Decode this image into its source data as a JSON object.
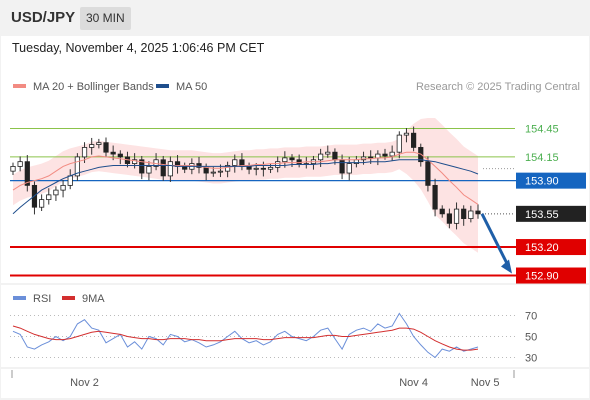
{
  "header": {
    "symbol": "USD/JPY",
    "timeframe": "30 MIN",
    "datetime": "Tuesday, November 4, 2025 1:06:46 PM CET"
  },
  "chart_data": [
    {
      "type": "line",
      "panel": "price",
      "legend": [
        {
          "name": "MA 20 + Bollinger Bands",
          "color": "#f28b82"
        },
        {
          "name": "MA 50",
          "color": "#1f4e8c"
        }
      ],
      "credit": "Research © 2025 Trading Central",
      "ylim": [
        152.8,
        154.75
      ],
      "levels": [
        {
          "label": "154.45",
          "value": 154.45,
          "color": "#8bc34a",
          "style": "thin-green"
        },
        {
          "label": "154.15",
          "value": 154.15,
          "color": "#8bc34a",
          "style": "thin-green"
        },
        {
          "label": "153.90",
          "value": 153.9,
          "color": "#1565c0",
          "style": "pivot"
        },
        {
          "label": "153.55",
          "value": 153.55,
          "color": "#222222",
          "style": "current"
        },
        {
          "label": "153.20",
          "value": 153.2,
          "color": "#e00000",
          "style": "target"
        },
        {
          "label": "152.90",
          "value": 152.9,
          "color": "#e00000",
          "style": "target"
        }
      ],
      "forecast": {
        "from": 153.55,
        "to": 152.9,
        "color": "#1f5fa8"
      },
      "series": [
        {
          "role": "price",
          "color": "#222222",
          "values": [
            154.05,
            154.1,
            153.85,
            153.62,
            153.7,
            153.75,
            153.8,
            153.85,
            153.95,
            154.15,
            154.25,
            154.28,
            154.3,
            154.2,
            154.18,
            154.15,
            154.08,
            154.12,
            153.98,
            154.05,
            154.12,
            153.95,
            154.1,
            154.05,
            154.02,
            154.08,
            154.04,
            153.98,
            153.99,
            154.0,
            154.06,
            154.12,
            154.05,
            154.02,
            154.03,
            154.02,
            154.04,
            154.1,
            154.14,
            154.12,
            154.08,
            154.08,
            154.12,
            154.18,
            154.2,
            154.12,
            153.98,
            154.08,
            154.12,
            154.15,
            154.14,
            154.18,
            154.16,
            154.2,
            154.38,
            154.4,
            154.25,
            154.1,
            153.85,
            153.6,
            153.55,
            153.45,
            153.6,
            153.5,
            153.58,
            153.55
          ]
        },
        {
          "role": "ma20",
          "color": "#f28b82",
          "values": [
            153.8,
            153.85,
            153.88,
            153.9,
            153.92,
            153.95,
            154.0,
            154.05,
            154.08,
            154.1,
            154.12,
            154.15,
            154.16,
            154.15,
            154.14,
            154.13,
            154.12,
            154.11,
            154.1,
            154.09,
            154.08,
            154.07,
            154.06,
            154.06,
            154.06,
            154.06,
            154.05,
            154.04,
            154.03,
            154.03,
            154.04,
            154.05,
            154.06,
            154.06,
            154.07,
            154.07,
            154.08,
            154.08,
            154.09,
            154.09,
            154.09,
            154.1,
            154.1,
            154.1,
            154.11,
            154.12,
            154.12,
            154.12,
            154.12,
            154.13,
            154.13,
            154.14,
            154.14,
            154.15,
            154.18,
            154.2,
            154.2,
            154.18,
            154.12,
            154.05,
            153.98,
            153.9,
            153.83,
            153.75,
            153.7,
            153.65
          ]
        },
        {
          "role": "ma50",
          "color": "#1f4e8c",
          "values": [
            153.55,
            153.62,
            153.68,
            153.74,
            153.8,
            153.84,
            153.88,
            153.92,
            153.95,
            153.98,
            154.0,
            154.02,
            154.04,
            154.05,
            154.06,
            154.06,
            154.06,
            154.06,
            154.06,
            154.06,
            154.06,
            154.06,
            154.06,
            154.05,
            154.05,
            154.05,
            154.05,
            154.05,
            154.05,
            154.05,
            154.05,
            154.05,
            154.05,
            154.05,
            154.06,
            154.06,
            154.06,
            154.06,
            154.06,
            154.07,
            154.07,
            154.07,
            154.07,
            154.08,
            154.08,
            154.09,
            154.09,
            154.09,
            154.09,
            154.09,
            154.1,
            154.1,
            154.1,
            154.11,
            154.12,
            154.12,
            154.12,
            154.12,
            154.11,
            154.1,
            154.08,
            154.06,
            154.04,
            154.02,
            154.0,
            153.97
          ]
        }
      ]
    },
    {
      "type": "line",
      "panel": "rsi",
      "legend": [
        {
          "name": "RSI",
          "color": "#6b8fd9"
        },
        {
          "name": "9MA",
          "color": "#d32f2f"
        }
      ],
      "ylim": [
        20,
        80
      ],
      "yticks": [
        70,
        50,
        30
      ],
      "xticks": [
        {
          "label": "Nov 2",
          "index": 10
        },
        {
          "label": "Nov 4",
          "index": 56
        },
        {
          "label": "Nov 5",
          "index": 66
        }
      ],
      "series": [
        {
          "name": "RSI",
          "color": "#6b8fd9",
          "values": [
            55,
            52,
            40,
            38,
            42,
            45,
            50,
            46,
            50,
            62,
            66,
            58,
            56,
            44,
            48,
            52,
            40,
            45,
            38,
            50,
            48,
            42,
            52,
            50,
            45,
            47,
            44,
            40,
            42,
            45,
            50,
            55,
            48,
            44,
            46,
            42,
            45,
            52,
            55,
            50,
            48,
            46,
            50,
            56,
            58,
            48,
            38,
            52,
            56,
            58,
            55,
            62,
            58,
            60,
            72,
            62,
            50,
            42,
            35,
            30,
            38,
            36,
            40,
            36,
            38,
            40
          ]
        },
        {
          "name": "9MA",
          "color": "#d32f2f",
          "values": [
            60,
            58,
            55,
            52,
            50,
            48,
            47,
            47,
            48,
            50,
            52,
            54,
            55,
            54,
            53,
            52,
            50,
            49,
            48,
            48,
            47,
            47,
            48,
            48,
            48,
            47,
            47,
            46,
            46,
            46,
            47,
            48,
            48,
            48,
            48,
            47,
            47,
            48,
            49,
            49,
            49,
            49,
            49,
            50,
            51,
            51,
            50,
            50,
            51,
            52,
            53,
            54,
            55,
            56,
            58,
            58,
            57,
            54,
            50,
            46,
            43,
            40,
            38,
            37,
            37,
            38
          ]
        }
      ]
    }
  ]
}
